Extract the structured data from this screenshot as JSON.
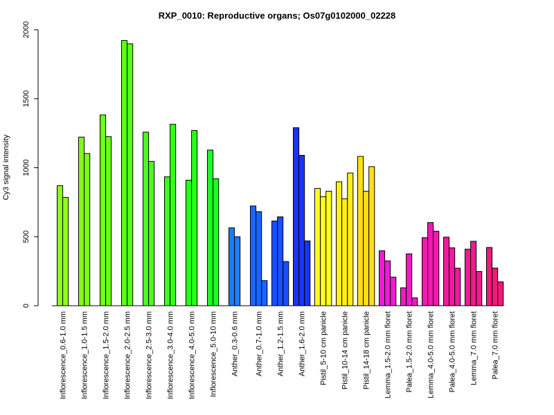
{
  "chart_data": {
    "type": "bar",
    "title": "RXP_0010: Reproductive organs; Os07g0102000_02228",
    "ylabel": "Cy3 signal intensity",
    "xlabel": "",
    "ylim": [
      0,
      2000
    ],
    "yticks": [
      0,
      500,
      1000,
      1500,
      2000
    ],
    "grid": false,
    "groups": [
      {
        "label": "Inflorescence_0.6-1.0 mm",
        "color": "#8cff1a",
        "values": [
          870,
          785
        ]
      },
      {
        "label": "Inflorescence_1.0-1.5 mm",
        "color": "#7fff1a",
        "values": [
          1222,
          1103
        ]
      },
      {
        "label": "Inflorescence_1.5-2.0 mm",
        "color": "#6eff1a",
        "values": [
          1383,
          1225
        ]
      },
      {
        "label": "Inflorescence_2.0-2.5 mm",
        "color": "#5cff1a",
        "values": [
          1922,
          1898
        ]
      },
      {
        "label": "Inflorescence_2.5-3.0 mm",
        "color": "#4aff1a",
        "values": [
          1258,
          1046
        ]
      },
      {
        "label": "Inflorescence_3.0-4.0 mm",
        "color": "#38ff1a",
        "values": [
          934,
          1315
        ]
      },
      {
        "label": "Inflorescence_4.0-5.0 mm",
        "color": "#26ff1a",
        "values": [
          910,
          1270
        ]
      },
      {
        "label": "Inflorescence_5.0-10 mm",
        "color": "#1aff26",
        "values": [
          1128,
          920
        ]
      },
      {
        "label": "Anther_0.3-0.6 mm",
        "color": "#1a7cff",
        "values": [
          565,
          500
        ]
      },
      {
        "label": "Anther_0.7-1.0 mm",
        "color": "#1a66ff",
        "values": [
          723,
          682,
          182
        ]
      },
      {
        "label": "Anther_1.2-1.5 mm",
        "color": "#1a50ff",
        "values": [
          614,
          644,
          320
        ]
      },
      {
        "label": "Anther_1.6-2.0 mm",
        "color": "#1a33ff",
        "values": [
          1290,
          1090,
          470
        ]
      },
      {
        "label": "Pistil_5-10 cm panicle",
        "color": "#ffff1a",
        "values": [
          850,
          790,
          830
        ]
      },
      {
        "label": "Pistil_10-14 cm panicle",
        "color": "#fff01a",
        "values": [
          898,
          775,
          962
        ]
      },
      {
        "label": "Pistil_14-18 cm panicle",
        "color": "#ffe01a",
        "values": [
          1082,
          830,
          1008
        ]
      },
      {
        "label": "Lemma_1.5-2.0 mm floret",
        "color": "#f01ad6",
        "values": [
          398,
          325,
          207
        ]
      },
      {
        "label": "Palea_1.5-2.0 mm floret",
        "color": "#f01ac4",
        "values": [
          130,
          376,
          57
        ]
      },
      {
        "label": "Lemma_4.0-5.0 mm floret",
        "color": "#f01ab0",
        "values": [
          493,
          603,
          540
        ]
      },
      {
        "label": "Palea_4.0-5.0 mm floret",
        "color": "#f01a9e",
        "values": [
          497,
          420,
          272
        ]
      },
      {
        "label": "Lemma_7.0 mm floret",
        "color": "#f01a8c",
        "values": [
          410,
          467,
          248
        ]
      },
      {
        "label": "Palea_7.0 mm floret",
        "color": "#f01a78",
        "values": [
          422,
          273,
          173
        ]
      }
    ]
  }
}
